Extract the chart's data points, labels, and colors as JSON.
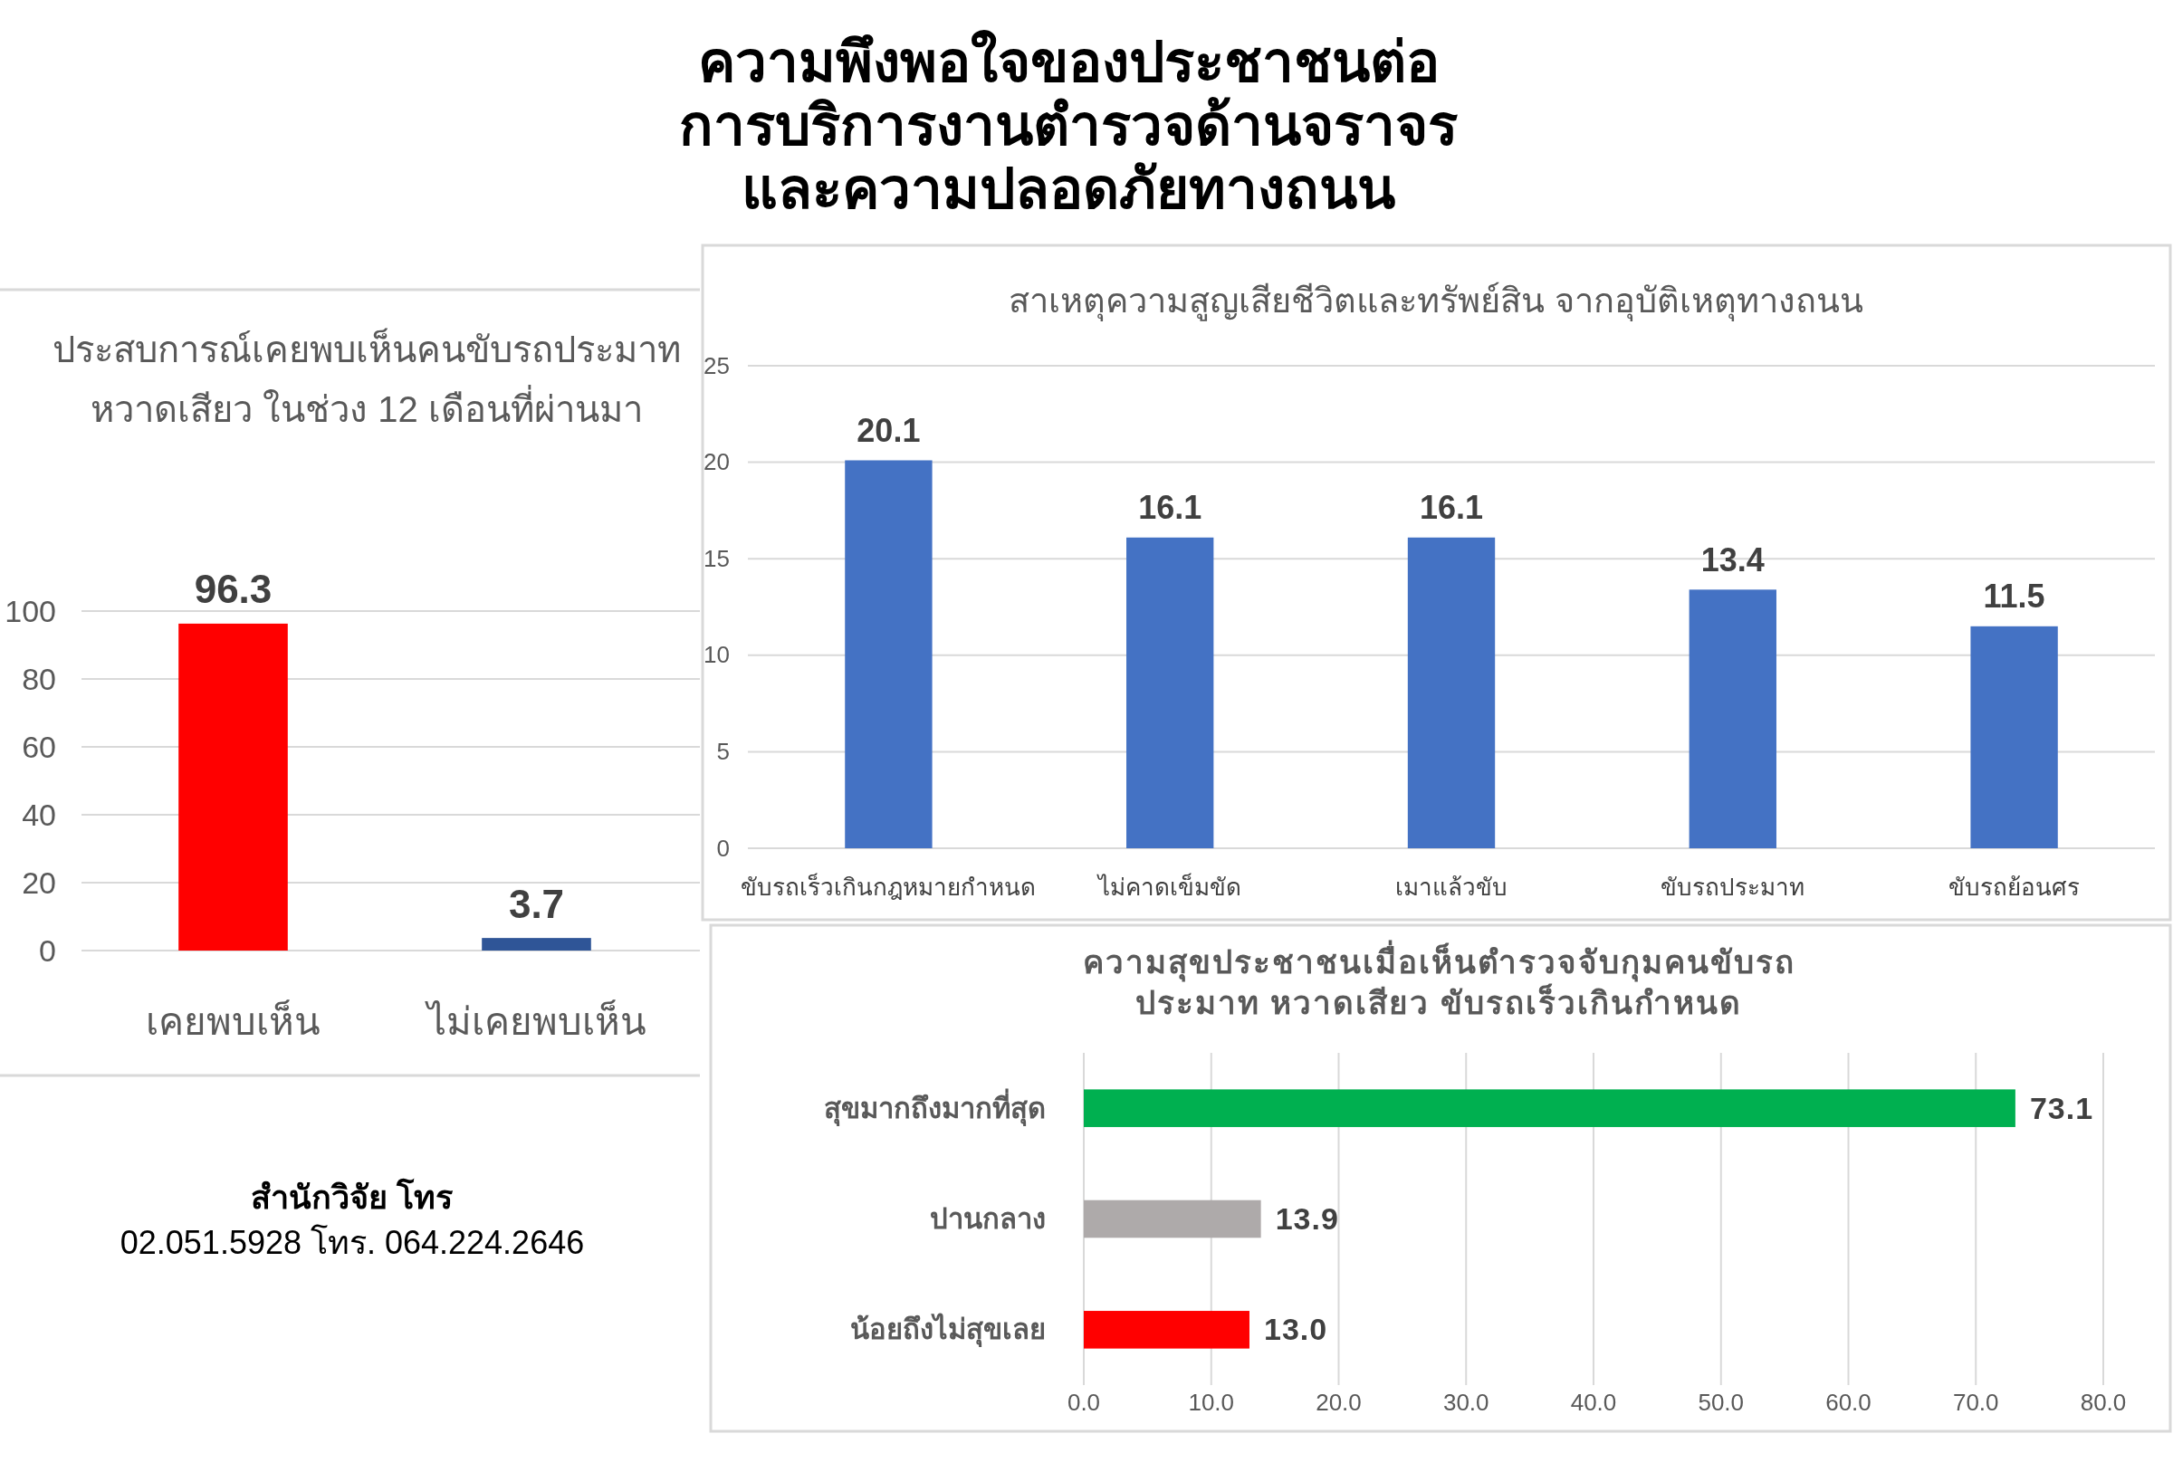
{
  "chart_data": [
    {
      "type": "other",
      "title": "ความพึงพอใจของประชาชนต่อ\nการบริการงานตำรวจด้านจราจร\nและความปลอดภัยทางถนน"
    },
    {
      "type": "bar",
      "title": "ประสบการณ์เคยพบเห็นคนขับรถประมาท\nหวาดเสียว ในช่วง 12 เดือนที่ผ่านมา",
      "categories": [
        "เคยพบเห็น",
        "ไม่เคยพบเห็น"
      ],
      "values": [
        96.3,
        3.7
      ],
      "colors": [
        "#ff0000",
        "#2f5597"
      ],
      "ylim": [
        0,
        100
      ],
      "yticks": [
        0,
        20,
        40,
        60,
        80,
        100
      ],
      "grid": "y",
      "data_labels": true
    },
    {
      "type": "bar",
      "title": "สาเหตุความสูญเสียชีวิตและทรัพย์สิน จากอุบัติเหตุทางถนน",
      "categories": [
        "ขับรถเร็วเกินกฎหมายกำหนด",
        "ไม่คาดเข็มขัด",
        "เมาแล้วขับ",
        "ขับรถประมาท",
        "ขับรถย้อนศร"
      ],
      "values": [
        20.1,
        16.1,
        16.1,
        13.4,
        11.5
      ],
      "color": "#4472c4",
      "ylim": [
        0,
        25
      ],
      "yticks": [
        0,
        5,
        10,
        15,
        20,
        25
      ],
      "grid": "y",
      "data_labels": true
    },
    {
      "type": "bar",
      "orientation": "horizontal",
      "title": "ความสุขประชาชนเมื่อเห็นตำรวจจับกุมคนขับรถ\nประมาท หวาดเสียว ขับรถเร็วเกินกำหนด",
      "categories": [
        "สุขมากถึงมากที่สุด",
        "ปานกลาง",
        "น้อยถึงไม่สุขเลย"
      ],
      "values": [
        73.1,
        13.9,
        13.0
      ],
      "colors": [
        "#00b050",
        "#aeaaaa",
        "#ff0000"
      ],
      "xlim": [
        0,
        80
      ],
      "xticks": [
        {
          "value": 0,
          "label": "0.0"
        },
        {
          "value": 10,
          "label": "10.0"
        },
        {
          "value": 20,
          "label": "20.0"
        },
        {
          "value": 30,
          "label": "30.0"
        },
        {
          "value": 40,
          "label": "40.0"
        },
        {
          "value": 50,
          "label": "50.0"
        },
        {
          "value": 60,
          "label": "60.0"
        },
        {
          "value": 70,
          "label": "70.0"
        },
        {
          "value": 80,
          "label": "80.0"
        }
      ],
      "grid": "x",
      "value_labels": [
        "73.1",
        "13.9",
        "13.0"
      ]
    },
    {
      "type": "other",
      "annotations": [
        "สำนักวิจัย โทร",
        "02.051.5928 โทร. 064.224.2646"
      ]
    }
  ]
}
